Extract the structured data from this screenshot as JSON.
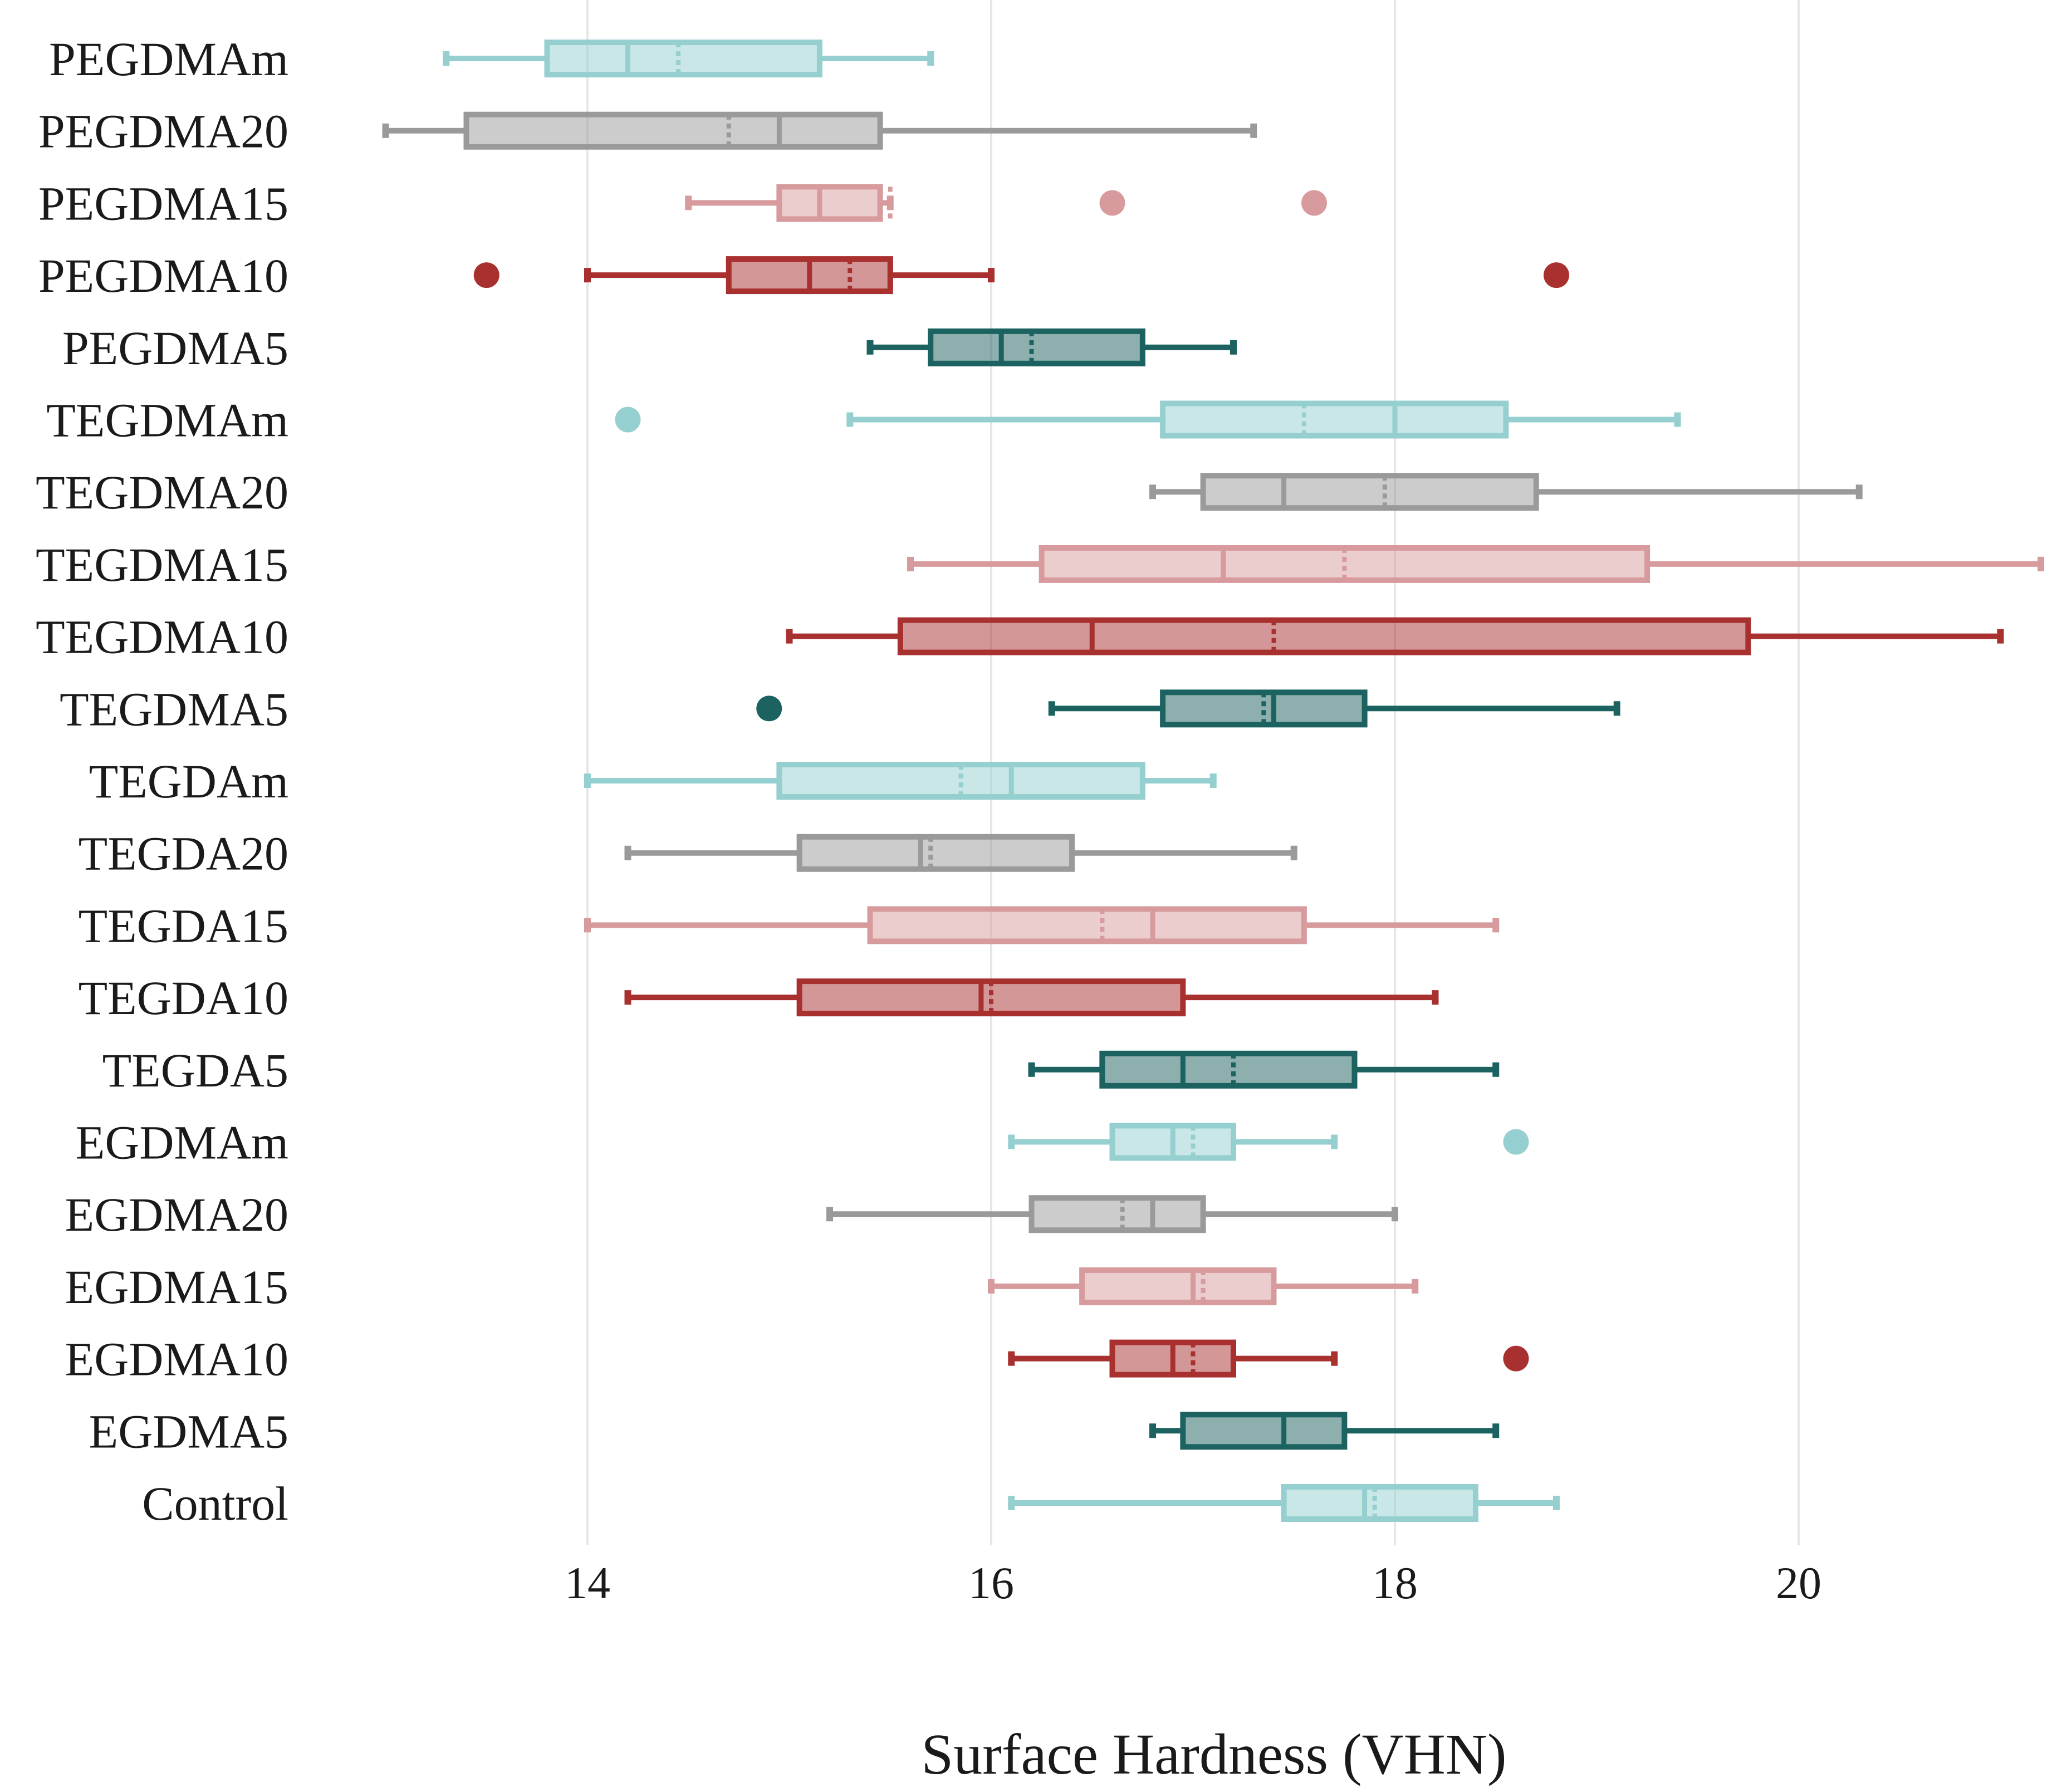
{
  "chart_data": {
    "type": "box",
    "xlabel": "Surface Hardness (VHN)",
    "xlim": [
      12.5,
      21.2
    ],
    "xticks": [
      14,
      16,
      18,
      20
    ],
    "grid": true,
    "orientation": "horizontal",
    "colors": {
      "m": "#96cfd0",
      "20": "#9a9a9a",
      "15": "#d89b9d",
      "10": "#a8302f",
      "5": "#1b6260",
      "control": "#96cfd0"
    },
    "series": [
      {
        "name": "PEGDMAm",
        "color_key": "m",
        "whisker_low": 13.3,
        "q1": 13.8,
        "median": 14.2,
        "mean": 14.45,
        "q3": 15.15,
        "whisker_high": 15.7,
        "outliers": []
      },
      {
        "name": "PEGDMA20",
        "color_key": "20",
        "whisker_low": 13.0,
        "q1": 13.4,
        "median": 14.95,
        "mean": 14.7,
        "q3": 15.45,
        "whisker_high": 17.3,
        "outliers": []
      },
      {
        "name": "PEGDMA15",
        "color_key": "15",
        "whisker_low": 14.5,
        "q1": 14.95,
        "median": 15.15,
        "mean": 15.5,
        "q3": 15.45,
        "whisker_high": 15.5,
        "outliers": [
          16.6,
          17.6
        ]
      },
      {
        "name": "PEGDMA10",
        "color_key": "10",
        "whisker_low": 14.0,
        "q1": 14.7,
        "median": 15.1,
        "mean": 15.3,
        "q3": 15.5,
        "whisker_high": 16.0,
        "outliers": [
          13.5,
          18.8
        ]
      },
      {
        "name": "PEGDMA5",
        "color_key": "5",
        "whisker_low": 15.4,
        "q1": 15.7,
        "median": 16.05,
        "mean": 16.2,
        "q3": 16.75,
        "whisker_high": 17.2,
        "outliers": []
      },
      {
        "name": "TEGDMAm",
        "color_key": "m",
        "whisker_low": 15.3,
        "q1": 16.85,
        "median": 18.0,
        "mean": 17.55,
        "q3": 18.55,
        "whisker_high": 19.4,
        "outliers": [
          14.2
        ]
      },
      {
        "name": "TEGDMA20",
        "color_key": "20",
        "whisker_low": 16.8,
        "q1": 17.05,
        "median": 17.45,
        "mean": 17.95,
        "q3": 18.7,
        "whisker_high": 20.3,
        "outliers": []
      },
      {
        "name": "TEGDMA15",
        "color_key": "15",
        "whisker_low": 15.6,
        "q1": 16.25,
        "median": 17.15,
        "mean": 17.75,
        "q3": 19.25,
        "whisker_high": 21.2,
        "outliers": []
      },
      {
        "name": "TEGDMA10",
        "color_key": "10",
        "whisker_low": 15.0,
        "q1": 15.55,
        "median": 16.5,
        "mean": 17.4,
        "q3": 19.75,
        "whisker_high": 21.0,
        "outliers": []
      },
      {
        "name": "TEGDMA5",
        "color_key": "5",
        "whisker_low": 16.3,
        "q1": 16.85,
        "median": 17.4,
        "mean": 17.35,
        "q3": 17.85,
        "whisker_high": 19.1,
        "outliers": [
          14.9
        ]
      },
      {
        "name": "TEGDAm",
        "color_key": "m",
        "whisker_low": 14.0,
        "q1": 14.95,
        "median": 16.1,
        "mean": 15.85,
        "q3": 16.75,
        "whisker_high": 17.1,
        "outliers": []
      },
      {
        "name": "TEGDA20",
        "color_key": "20",
        "whisker_low": 14.2,
        "q1": 15.05,
        "median": 15.65,
        "mean": 15.7,
        "q3": 16.4,
        "whisker_high": 17.5,
        "outliers": []
      },
      {
        "name": "TEGDA15",
        "color_key": "15",
        "whisker_low": 14.0,
        "q1": 15.4,
        "median": 16.8,
        "mean": 16.55,
        "q3": 17.55,
        "whisker_high": 18.5,
        "outliers": []
      },
      {
        "name": "TEGDA10",
        "color_key": "10",
        "whisker_low": 14.2,
        "q1": 15.05,
        "median": 15.95,
        "mean": 16.0,
        "q3": 16.95,
        "whisker_high": 18.2,
        "outliers": []
      },
      {
        "name": "TEGDA5",
        "color_key": "5",
        "whisker_low": 16.2,
        "q1": 16.55,
        "median": 16.95,
        "mean": 17.2,
        "q3": 17.8,
        "whisker_high": 18.5,
        "outliers": []
      },
      {
        "name": "EGDMAm",
        "color_key": "m",
        "whisker_low": 16.1,
        "q1": 16.6,
        "median": 16.9,
        "mean": 17.0,
        "q3": 17.2,
        "whisker_high": 17.7,
        "outliers": [
          18.6
        ]
      },
      {
        "name": "EGDMA20",
        "color_key": "20",
        "whisker_low": 15.2,
        "q1": 16.2,
        "median": 16.8,
        "mean": 16.65,
        "q3": 17.05,
        "whisker_high": 18.0,
        "outliers": []
      },
      {
        "name": "EGDMA15",
        "color_key": "15",
        "whisker_low": 16.0,
        "q1": 16.45,
        "median": 17.0,
        "mean": 17.05,
        "q3": 17.4,
        "whisker_high": 18.1,
        "outliers": []
      },
      {
        "name": "EGDMA10",
        "color_key": "10",
        "whisker_low": 16.1,
        "q1": 16.6,
        "median": 16.9,
        "mean": 17.0,
        "q3": 17.2,
        "whisker_high": 17.7,
        "outliers": [
          18.6
        ]
      },
      {
        "name": "EGDMA5",
        "color_key": "5",
        "whisker_low": 16.8,
        "q1": 16.95,
        "median": 17.45,
        "mean": 17.45,
        "q3": 17.75,
        "whisker_high": 18.5,
        "outliers": []
      },
      {
        "name": "Control",
        "color_key": "control",
        "whisker_low": 16.1,
        "q1": 17.45,
        "median": 17.85,
        "mean": 17.9,
        "q3": 18.4,
        "whisker_high": 18.8,
        "outliers": []
      }
    ]
  }
}
